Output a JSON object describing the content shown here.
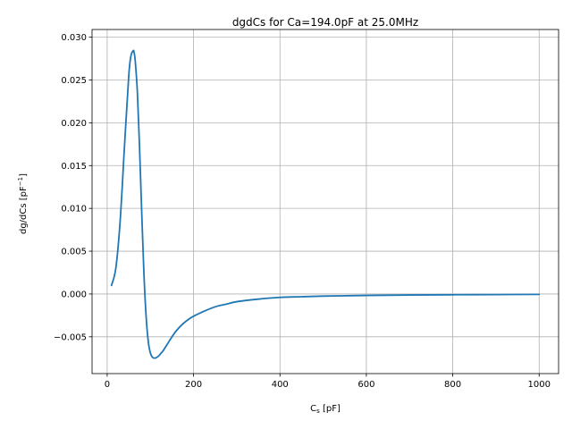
{
  "chart_data": {
    "type": "line",
    "title": "dgdCs for Ca=194.0pF at 25.0MHz",
    "xlabel_main": "C",
    "xlabel_sub": "s",
    "xlabel_rest": " [pF]",
    "ylabel_main": "dg/dCs [pF",
    "ylabel_sup": "−1",
    "ylabel_end": "]",
    "xlim": [
      -35,
      1045
    ],
    "ylim": [
      -0.0093,
      0.0309
    ],
    "xticks": [
      0,
      200,
      400,
      600,
      800,
      1000
    ],
    "xtick_labels": [
      "0",
      "200",
      "400",
      "600",
      "800",
      "1000"
    ],
    "yticks": [
      -0.005,
      0.0,
      0.005,
      0.01,
      0.015,
      0.02,
      0.025,
      0.03
    ],
    "ytick_labels": [
      "−0.005",
      "0.000",
      "0.005",
      "0.010",
      "0.015",
      "0.020",
      "0.025",
      "0.030"
    ],
    "grid": true,
    "line_color": "#1f77b4",
    "series": [
      {
        "x": [
          10,
          20,
          30,
          40,
          50,
          55,
          60,
          62,
          65,
          70,
          75,
          80,
          85,
          90,
          95,
          100,
          105,
          110,
          115,
          120,
          125,
          130,
          140,
          150,
          160,
          175,
          190,
          200,
          225,
          250,
          275,
          300,
          350,
          400,
          450,
          500,
          600,
          700,
          800,
          900,
          1000
        ],
        "y": [
          0.001,
          0.003,
          0.0085,
          0.0172,
          0.0255,
          0.0278,
          0.0284,
          0.0283,
          0.0272,
          0.0235,
          0.017,
          0.0095,
          0.0025,
          -0.0025,
          -0.0055,
          -0.0069,
          -0.0074,
          -0.0075,
          -0.0074,
          -0.0072,
          -0.0069,
          -0.0066,
          -0.0058,
          -0.005,
          -0.0043,
          -0.0035,
          -0.0029,
          -0.0026,
          -0.002,
          -0.0015,
          -0.0012,
          -0.0009,
          -0.0006,
          -0.0004,
          -0.00032,
          -0.00025,
          -0.00017,
          -0.00012,
          -9e-05,
          -7e-05,
          -5e-05
        ]
      }
    ]
  }
}
